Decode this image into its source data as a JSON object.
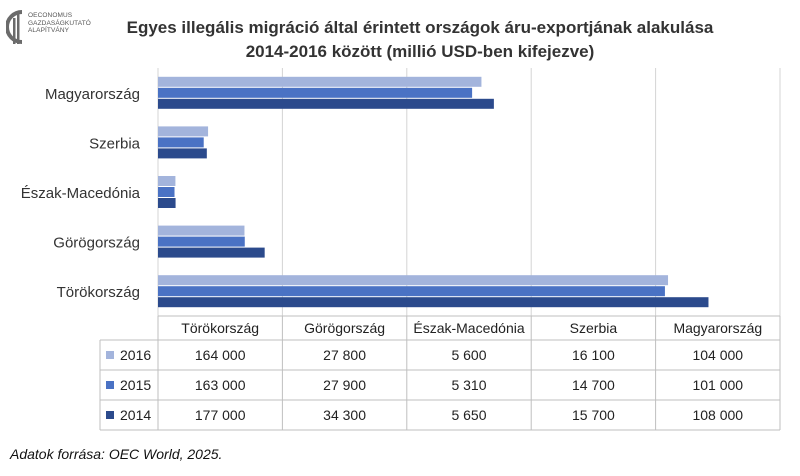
{
  "logo": {
    "lines": [
      "OECONOMUS",
      "GAZDASÁGKUTATÓ",
      "ALAPÍTVÁNY"
    ],
    "icon": "oeconomus-logo-icon"
  },
  "title_line1": "Egyes illegális migráció által érintett országok áru-exportjának alakulása",
  "title_line2": "2014-2016 között (millió USD-ben kifejezve)",
  "source": "Adatok forrása: OEC World, 2025.",
  "colors": {
    "2016": "#a3b4dc",
    "2015": "#4a72c4",
    "2014": "#2b4a8c"
  },
  "chart_data": {
    "type": "bar",
    "orientation": "horizontal",
    "categories": [
      "Magyarország",
      "Szerbia",
      "Észak-Macedónia",
      "Görögország",
      "Törökország"
    ],
    "table_columns": [
      "Törökország",
      "Görögország",
      "Észak-Macedónia",
      "Szerbia",
      "Magyarország"
    ],
    "series": [
      {
        "name": "2016",
        "values": [
          104000,
          16100,
          5600,
          27800,
          164000
        ],
        "labels": [
          "104 000",
          "16 100",
          "5 600",
          "27 800",
          "164 000"
        ]
      },
      {
        "name": "2015",
        "values": [
          101000,
          14700,
          5310,
          27900,
          163000
        ],
        "labels": [
          "101 000",
          "14 700",
          "5 310",
          "27 900",
          "163 000"
        ]
      },
      {
        "name": "2014",
        "values": [
          108000,
          15700,
          5650,
          34300,
          177000
        ],
        "labels": [
          "108 000",
          "15 700",
          "5 650",
          "34 300",
          "177 000"
        ]
      }
    ],
    "xlim": [
      0,
      200000
    ],
    "grid": true,
    "legend_placement": "data-table"
  }
}
